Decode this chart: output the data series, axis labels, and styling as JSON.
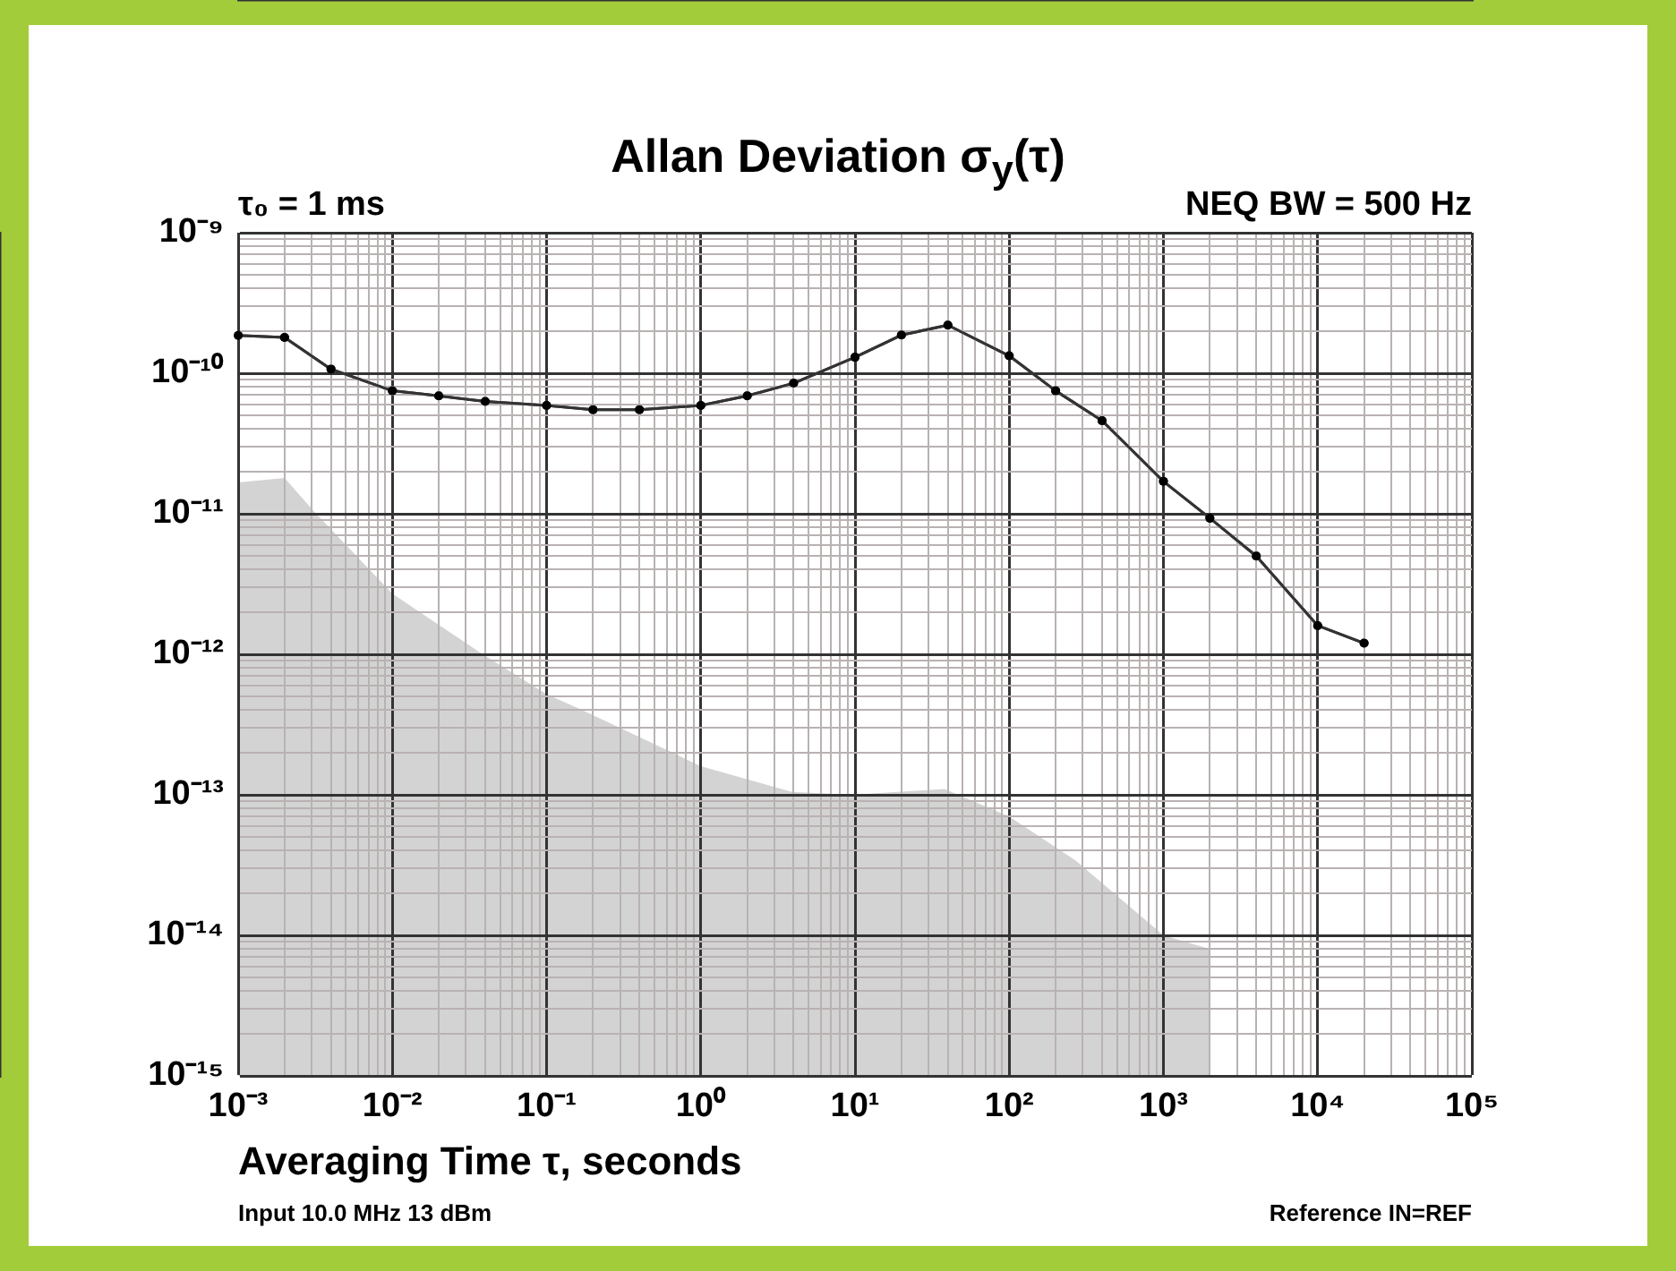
{
  "chart_data": {
    "type": "line",
    "title": "Allan Deviation σ$_{y}$(τ)",
    "xlabel": "Averaging Time τ, seconds",
    "annotations": [
      "τ₀ = 1 ms",
      "NEQ BW = 500 Hz",
      "Input 10.0 MHz 13 dBm",
      "Reference IN=REF"
    ],
    "log": "xy",
    "grid": true,
    "marker": "circle",
    "xlim": [
      0.001,
      100000.0
    ],
    "ylim": [
      1e-15,
      1e-09
    ],
    "xticks": [
      {
        "value": 0.001,
        "label": "10⁻³"
      },
      {
        "value": 0.002,
        "label": null
      },
      {
        "value": 0.003,
        "label": null
      },
      {
        "value": 0.004,
        "label": null
      },
      {
        "value": 0.005,
        "label": null
      },
      {
        "value": 0.006,
        "label": null
      },
      {
        "value": 0.007,
        "label": null
      },
      {
        "value": 0.008,
        "label": null
      },
      {
        "value": 0.009,
        "label": null
      },
      {
        "value": 0.01,
        "label": "10⁻²"
      },
      {
        "value": 0.02,
        "label": null
      },
      {
        "value": 0.03,
        "label": null
      },
      {
        "value": 0.04,
        "label": null
      },
      {
        "value": 0.05,
        "label": null
      },
      {
        "value": 0.06,
        "label": null
      },
      {
        "value": 0.07,
        "label": null
      },
      {
        "value": 0.08,
        "label": null
      },
      {
        "value": 0.09,
        "label": null
      },
      {
        "value": 0.1,
        "label": "10⁻¹"
      },
      {
        "value": 0.2,
        "label": null
      },
      {
        "value": 0.3,
        "label": null
      },
      {
        "value": 0.4,
        "label": null
      },
      {
        "value": 0.5,
        "label": null
      },
      {
        "value": 0.6,
        "label": null
      },
      {
        "value": 0.7,
        "label": null
      },
      {
        "value": 0.8,
        "label": null
      },
      {
        "value": 0.9,
        "label": null
      },
      {
        "value": 1,
        "label": "10⁰"
      },
      {
        "value": 2,
        "label": null
      },
      {
        "value": 3,
        "label": null
      },
      {
        "value": 4,
        "label": null
      },
      {
        "value": 5,
        "label": null
      },
      {
        "value": 6,
        "label": null
      },
      {
        "value": 7,
        "label": null
      },
      {
        "value": 8,
        "label": null
      },
      {
        "value": 9,
        "label": null
      },
      {
        "value": 10,
        "label": "10¹"
      },
      {
        "value": 20,
        "label": null
      },
      {
        "value": 30,
        "label": null
      },
      {
        "value": 40,
        "label": null
      },
      {
        "value": 50,
        "label": null
      },
      {
        "value": 60,
        "label": null
      },
      {
        "value": 70,
        "label": null
      },
      {
        "value": 80,
        "label": null
      },
      {
        "value": 90,
        "label": null
      },
      {
        "value": 100,
        "label": "10²"
      },
      {
        "value": 200,
        "label": null
      },
      {
        "value": 300,
        "label": null
      },
      {
        "value": 400,
        "label": null
      },
      {
        "value": 500,
        "label": null
      },
      {
        "value": 600,
        "label": null
      },
      {
        "value": 700,
        "label": null
      },
      {
        "value": 800,
        "label": null
      },
      {
        "value": 900,
        "label": null
      },
      {
        "value": 1000,
        "label": "10³"
      },
      {
        "value": 2000,
        "label": null
      },
      {
        "value": 3000,
        "label": null
      },
      {
        "value": 4000,
        "label": null
      },
      {
        "value": 5000,
        "label": null
      },
      {
        "value": 6000,
        "label": null
      },
      {
        "value": 7000,
        "label": null
      },
      {
        "value": 8000,
        "label": null
      },
      {
        "value": 9000,
        "label": null
      },
      {
        "value": 10000,
        "label": "10⁴"
      },
      {
        "value": 20000,
        "label": null
      },
      {
        "value": 30000,
        "label": null
      },
      {
        "value": 40000,
        "label": null
      },
      {
        "value": 50000,
        "label": null
      },
      {
        "value": 60000,
        "label": null
      },
      {
        "value": 70000,
        "label": null
      },
      {
        "value": 80000,
        "label": null
      },
      {
        "value": 90000,
        "label": null
      },
      {
        "value": 100000,
        "label": "10⁵"
      }
    ],
    "yticks": [
      {
        "value": 1e-15,
        "label": "10⁻¹⁵"
      },
      {
        "value": 2e-15,
        "label": null
      },
      {
        "value": 3e-15,
        "label": null
      },
      {
        "value": 4e-15,
        "label": null
      },
      {
        "value": 5e-15,
        "label": null
      },
      {
        "value": 6e-15,
        "label": null
      },
      {
        "value": 7e-15,
        "label": null
      },
      {
        "value": 8e-15,
        "label": null
      },
      {
        "value": 9e-15,
        "label": null
      },
      {
        "value": 1e-14,
        "label": "10⁻¹⁴"
      },
      {
        "value": 2e-14,
        "label": null
      },
      {
        "value": 3e-14,
        "label": null
      },
      {
        "value": 4e-14,
        "label": null
      },
      {
        "value": 5e-14,
        "label": null
      },
      {
        "value": 6e-14,
        "label": null
      },
      {
        "value": 7e-14,
        "label": null
      },
      {
        "value": 8e-14,
        "label": null
      },
      {
        "value": 9e-14,
        "label": null
      },
      {
        "value": 1e-13,
        "label": "10⁻¹³"
      },
      {
        "value": 2e-13,
        "label": null
      },
      {
        "value": 3e-13,
        "label": null
      },
      {
        "value": 4e-13,
        "label": null
      },
      {
        "value": 5e-13,
        "label": null
      },
      {
        "value": 6e-13,
        "label": null
      },
      {
        "value": 7e-13,
        "label": null
      },
      {
        "value": 8e-13,
        "label": null
      },
      {
        "value": 9e-13,
        "label": null
      },
      {
        "value": 1e-12,
        "label": "10⁻¹²"
      },
      {
        "value": 2e-12,
        "label": null
      },
      {
        "value": 3e-12,
        "label": null
      },
      {
        "value": 4e-12,
        "label": null
      },
      {
        "value": 5e-12,
        "label": null
      },
      {
        "value": 6e-12,
        "label": null
      },
      {
        "value": 7e-12,
        "label": null
      },
      {
        "value": 8e-12,
        "label": null
      },
      {
        "value": 9e-12,
        "label": null
      },
      {
        "value": 1e-11,
        "label": "10⁻¹¹"
      },
      {
        "value": 2e-11,
        "label": null
      },
      {
        "value": 3e-11,
        "label": null
      },
      {
        "value": 4e-11,
        "label": null
      },
      {
        "value": 5e-11,
        "label": null
      },
      {
        "value": 6e-11,
        "label": null
      },
      {
        "value": 7e-11,
        "label": null
      },
      {
        "value": 8e-11,
        "label": null
      },
      {
        "value": 9e-11,
        "label": null
      },
      {
        "value": 1e-10,
        "label": "10⁻¹⁰"
      },
      {
        "value": 2e-10,
        "label": null
      },
      {
        "value": 3e-10,
        "label": null
      },
      {
        "value": 4e-10,
        "label": null
      },
      {
        "value": 5e-10,
        "label": null
      },
      {
        "value": 6e-10,
        "label": null
      },
      {
        "value": 7e-10,
        "label": null
      },
      {
        "value": 8e-10,
        "label": null
      },
      {
        "value": 9e-10,
        "label": null
      },
      {
        "value": 1e-09,
        "label": "10⁻⁹"
      }
    ],
    "series": [
      {
        "type": "area",
        "marker": "none",
        "color": "#d3d3d3",
        "x": [
          0.001,
          0.002,
          0.0031,
          0.01,
          0.037,
          0.1,
          0.18,
          1,
          3.9,
          9.6,
          38,
          100,
          270,
          1000,
          2000,
          2000
        ],
        "values": [
          1.67e-11,
          1.8e-11,
          1.04e-11,
          2.7e-12,
          1.03e-12,
          5.2e-13,
          3.9e-13,
          1.6e-13,
          1.05e-13,
          1e-13,
          1.1e-13,
          7e-14,
          3.4e-14,
          1e-14,
          8e-15,
          1e-15
        ]
      },
      {
        "type": "line",
        "color": "#333333",
        "x": [
          0.001,
          0.002,
          0.004,
          0.01,
          0.02,
          0.04,
          0.1,
          0.2,
          0.4,
          1,
          2,
          4,
          10,
          20,
          40,
          100,
          200,
          400,
          1000,
          2000,
          4000,
          10000,
          20000
        ],
        "values": [
          1.86e-10,
          1.8e-10,
          1.07e-10,
          7.5e-11,
          6.9e-11,
          6.3e-11,
          5.9e-11,
          5.5e-11,
          5.5e-11,
          5.9e-11,
          6.9e-11,
          8.5e-11,
          1.3e-10,
          1.87e-10,
          2.2e-10,
          1.33e-10,
          7.5e-11,
          4.6e-11,
          1.7e-11,
          9.3e-12,
          5e-12,
          1.6e-12,
          1.2e-12
        ]
      }
    ]
  }
}
